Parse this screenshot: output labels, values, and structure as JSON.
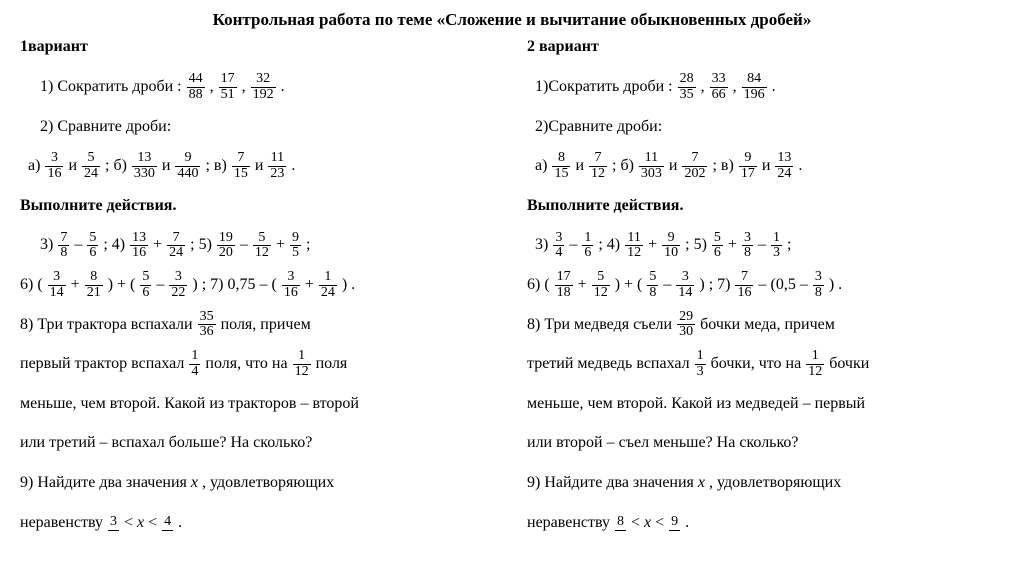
{
  "title": "Контрольная работа по теме «Сложение и вычитание обыкновенных дробей»",
  "v1": {
    "heading": "1вариант",
    "t1_lead": "1)    Сократить  дроби : ",
    "t1_f1n": "44",
    "t1_f1d": "88",
    "t1_f2n": "17",
    "t1_f2d": "51",
    "t1_f3n": "32",
    "t1_f3d": "192",
    "t2_lead": "2)    Сравните дроби:",
    "t2a": "а) ",
    "t2and": "  и  ",
    "t2b": " ;  б) ",
    "t2v": " ;  в) ",
    "t2_f1n": "3",
    "t2_f1d": "16",
    "t2_f2n": "5",
    "t2_f2d": "24",
    "t2_f3n": "13",
    "t2_f3d": "330",
    "t2_f4n": "9",
    "t2_f4d": "440",
    "t2_f5n": "7",
    "t2_f5d": "15",
    "t2_f6n": "11",
    "t2_f6d": "23",
    "t2_end": " .",
    "actions": "Выполните действия.",
    "t3_lead": "3)    ",
    "t3_f1n": "7",
    "t3_f1d": "8",
    "t3_minus": "  –  ",
    "t3_f2n": "5",
    "t3_f2d": "6",
    "t4_lead": " ;   4)  ",
    "t4_f1n": "13",
    "t4_f1d": "16",
    "t4_plus": "  +  ",
    "t4_f2n": "7",
    "t4_f2d": "24",
    "t5_lead": " ;   5) ",
    "t5_f1n": "19",
    "t5_f1d": "20",
    "t5_m": "  –  ",
    "t5_f2n": "5",
    "t5_f2d": "12",
    "t5_p": "  +  ",
    "t5_f3n": "9",
    "t5_f3d": "5",
    "t5_end": " ;",
    "t6_lead": "6) ( ",
    "t6_f1n": "3",
    "t6_f1d": "14",
    "t6_p": " + ",
    "t6_f2n": "8",
    "t6_f2d": "21",
    "t6_mid": " ) + ( ",
    "t6_f3n": "5",
    "t6_f3d": "6",
    "t6_m": "  –   ",
    "t6_f4n": "3",
    "t6_f4d": "22",
    "t6_end": " ) ;",
    "t7_lead": "    7)  0,75 – ( ",
    "t7_f1n": "3",
    "t7_f1d": "16",
    "t7_p": " + ",
    "t7_f2n": "1",
    "t7_f2d": "24",
    "t7_end": " ) .",
    "t8a": "8) Три трактора вспахали  ",
    "t8_f1n": "35",
    "t8_f1d": "36",
    "t8b": "  поля, причем",
    "t8c": "первый трактор вспахал ",
    "t8_f2n": "1",
    "t8_f2d": "4",
    "t8d": " поля, что на  ",
    "t8_f3n": "1",
    "t8_f3d": "12",
    "t8e": "  поля",
    "t8f": "меньше, чем второй. Какой из тракторов – второй",
    "t8g": "или третий – вспахал больше? На сколько?",
    "t9a": "9) Найдите два значения  ",
    "t9x": "x",
    "t9b": " , удовлетворяющих",
    "t9c": "неравенству  ",
    "t9_f1n": "3",
    "t9_f1d": " ",
    "t9lt": " <  ",
    "t9x2": "x",
    "t9lt2": " < ",
    "t9_f2n": "4",
    "t9_f2d": " ",
    "t9end": " ."
  },
  "v2": {
    "heading": "2 вариант",
    "t1_lead": "1)Сократить  дроби : ",
    "t1_f1n": "28",
    "t1_f1d": "35",
    "t1_f2n": "33",
    "t1_f2d": "66",
    "t1_f3n": "84",
    "t1_f3d": "196",
    "t2_lead": "2)Сравните дроби:",
    "t2a": "а) ",
    "t2and": "  и  ",
    "t2b": " ; б) ",
    "t2v": " ;  в) ",
    "t2_f1n": "8",
    "t2_f1d": "15",
    "t2_f2n": "7",
    "t2_f2d": "12",
    "t2_f3n": "11",
    "t2_f3d": "303",
    "t2_f4n": "7",
    "t2_f4d": "202",
    "t2_f5n": "9",
    "t2_f5d": "17",
    "t2_f6n": "13",
    "t2_f6d": "24",
    "t2_end": " .",
    "actions": "Выполните действия.",
    "t3_lead": "3) ",
    "t3_f1n": "3",
    "t3_f1d": "4",
    "t3_minus": " – ",
    "t3_f2n": "1",
    "t3_f2d": "6",
    "t4_lead": " ;   4)  ",
    "t4_f1n": "11",
    "t4_f1d": "12",
    "t4_plus": "  +  ",
    "t4_f2n": "9",
    "t4_f2d": "10",
    "t5_lead": " ;   5) ",
    "t5_f1n": "5",
    "t5_f1d": "6",
    "t5_m": " + ",
    "t5_f2n": "3",
    "t5_f2d": "8",
    "t5_p": " – ",
    "t5_f3n": "1",
    "t5_f3d": "3",
    "t5_end": " ;",
    "t6_lead": "6) ( ",
    "t6_f1n": "17",
    "t6_f1d": "18",
    "t6_p": " + ",
    "t6_f2n": "5",
    "t6_f2d": "12",
    "t6_mid": " ) + ( ",
    "t6_f3n": "5",
    "t6_f3d": "8",
    "t6_m": "  –   ",
    "t6_f4n": "3",
    "t6_f4d": "14",
    "t6_end": " ) ;",
    "t7_lead": "    7)  ",
    "t7_f0n": "7",
    "t7_f0d": "16",
    "t7_mid": " – (0,5  –   ",
    "t7_f1n": "3",
    "t7_f1d": "8",
    "t7_end": " ) .",
    "t8a": "8) Три медведя  съели  ",
    "t8_f1n": "29",
    "t8_f1d": "30",
    "t8b": "  бочки меда, причем",
    "t8c": "третий  медведь  вспахал ",
    "t8_f2n": "1",
    "t8_f2d": "3",
    "t8d": " бочки, что на  ",
    "t8_f3n": "1",
    "t8_f3d": "12",
    "t8e": " бочки",
    "t8f": "меньше, чем второй. Какой из медведей – первый",
    "t8g": "или второй  – съел меньше? На сколько?",
    "t9a": "9) Найдите два значения ",
    "t9x": "x",
    "t9b": ", удовлетворяющих",
    "t9c": "неравенству  ",
    "t9_f1n": "8",
    "t9_f1d": " ",
    "t9lt": " <  ",
    "t9x2": "x",
    "t9lt2": " < ",
    "t9_f2n": "9",
    "t9_f2d": " ",
    "t9end": " ."
  }
}
